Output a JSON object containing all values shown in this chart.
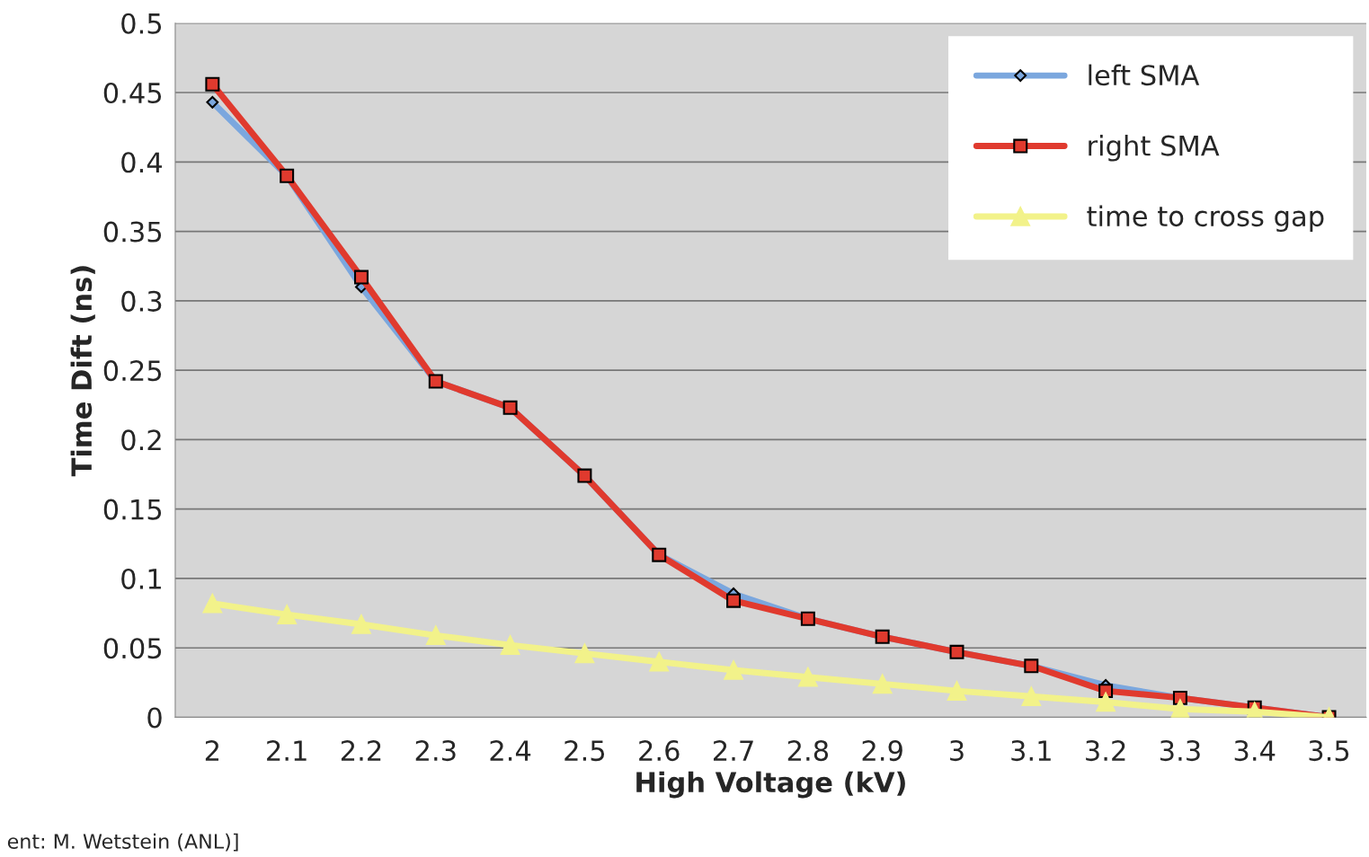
{
  "chart_data": {
    "type": "line",
    "xlabel": "High Voltage (kV)",
    "ylabel": "Time Dift (ns)",
    "categories": [
      "2",
      "2.1",
      "2.2",
      "2.3",
      "2.4",
      "2.5",
      "2.6",
      "2.7",
      "2.8",
      "2.9",
      "3",
      "3.1",
      "3.2",
      "3.3",
      "3.4",
      "3.5"
    ],
    "series": [
      {
        "name": "left SMA",
        "color": "#7ba7de",
        "marker": "diamond",
        "values": [
          0.443,
          0.39,
          0.31,
          0.242,
          0.223,
          0.174,
          0.117,
          0.089,
          0.071,
          0.058,
          0.047,
          0.037,
          0.023,
          0.014,
          null,
          0.0
        ]
      },
      {
        "name": "right SMA",
        "color": "#e03a2e",
        "marker": "square",
        "values": [
          0.456,
          0.39,
          0.317,
          0.242,
          0.223,
          0.174,
          0.117,
          0.084,
          0.071,
          0.058,
          0.047,
          0.037,
          0.019,
          0.014,
          0.007,
          0.0
        ]
      },
      {
        "name": "time to cross gap",
        "color": "#f2f28a",
        "marker": "triangle",
        "values": [
          0.082,
          0.074,
          0.067,
          0.059,
          0.052,
          0.046,
          0.04,
          0.034,
          0.029,
          0.024,
          0.019,
          0.015,
          0.011,
          0.006,
          0.004,
          0.0
        ]
      }
    ],
    "ylim": [
      0,
      0.5
    ],
    "yticks": [
      0,
      0.05,
      0.1,
      0.15,
      0.2,
      0.25,
      0.3,
      0.35,
      0.4,
      0.45,
      0.5
    ],
    "grid": "y",
    "legend": "top right",
    "annotations": [
      "ent: M. Wetstein (ANL)]"
    ]
  }
}
